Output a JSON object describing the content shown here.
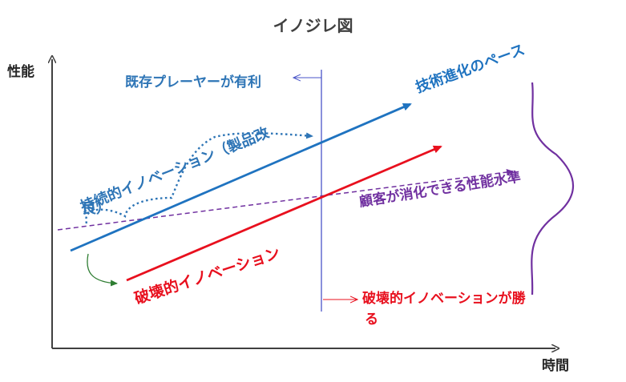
{
  "title": "イノジレ図",
  "axes": {
    "y_label": "性能",
    "x_label": "時間"
  },
  "labels": {
    "incumbent_wins": "既存プレーヤーが有利",
    "tech_pace": "技術進化のペース",
    "sustaining_line1": "持続的イノベーション（製品改",
    "sustaining_line2": "良）",
    "customer_demand": "顧客が消化できる性能水準",
    "disruptive": "破壊的イノベーション",
    "disruptor_wins_line1": "破壊的イノベーションが勝",
    "disruptor_wins_line2": "る"
  },
  "colors": {
    "axis": "#404040",
    "tech_pace": "#1f73c0",
    "sustaining": "#2e75b6",
    "disruptive": "#e8101e",
    "customer_demand": "#7030a0",
    "divider": "#4a55c8",
    "green_arrow": "#2e7d32"
  }
}
